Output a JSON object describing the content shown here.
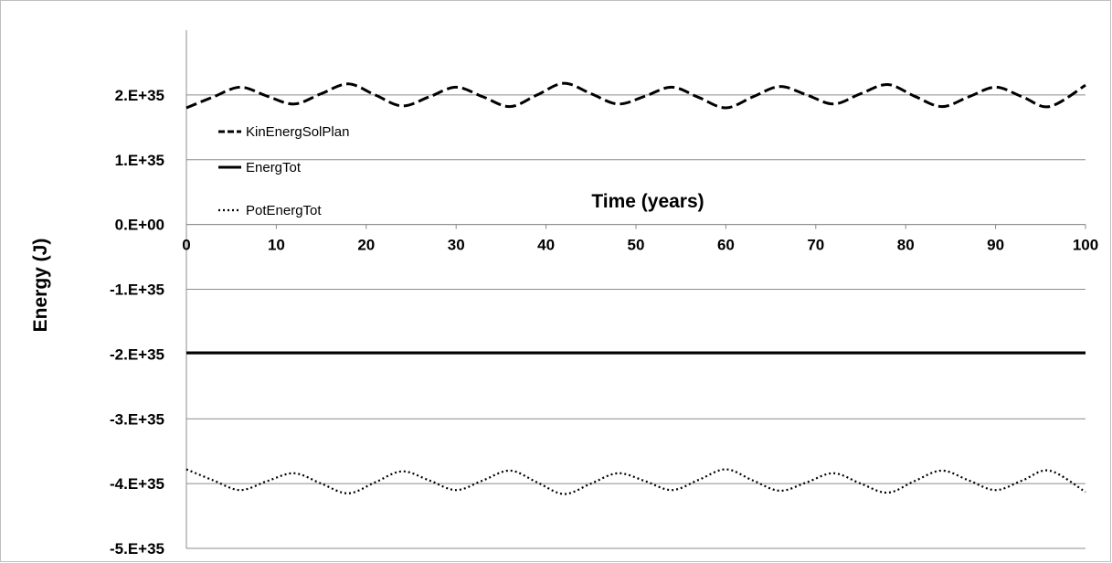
{
  "chart_data": {
    "type": "line",
    "xlabel": "Time (years)",
    "ylabel": "Energy (J)",
    "xlim": [
      0,
      100
    ],
    "ylim": [
      -5e+35,
      3e+35
    ],
    "x_ticks": [
      0,
      10,
      20,
      30,
      40,
      50,
      60,
      70,
      80,
      90,
      100
    ],
    "x_tick_labels": [
      "0",
      "10",
      "20",
      "30",
      "40",
      "50",
      "60",
      "70",
      "80",
      "90",
      "100"
    ],
    "y_ticks": [
      2e+35,
      1e+35,
      0,
      -1e+35,
      -2e+35,
      -3e+35,
      -4e+35,
      -5e+35
    ],
    "y_tick_labels": [
      "2.E+35",
      "1.E+35",
      "0.E+00",
      "-1.E+35",
      "-2.E+35",
      "-3.E+35",
      "-4.E+35",
      "-5.E+35"
    ],
    "grid": "horizontal",
    "legend_position": "top-left",
    "x": [
      0,
      3,
      6,
      9,
      12,
      15,
      18,
      21,
      24,
      27,
      30,
      33,
      36,
      39,
      42,
      45,
      48,
      51,
      54,
      57,
      60,
      63,
      66,
      69,
      72,
      75,
      78,
      81,
      84,
      87,
      90,
      93,
      96,
      100
    ],
    "series": [
      {
        "name": "KinEnergSolPlan",
        "style": "dashed",
        "color": "#000000",
        "values": [
          1.8e+35,
          1.97e+35,
          2.12e+35,
          1.98e+35,
          1.86e+35,
          2.02e+35,
          2.17e+35,
          2e+35,
          1.83e+35,
          1.97e+35,
          2.12e+35,
          1.97e+35,
          1.82e+35,
          2e+35,
          2.18e+35,
          2.02e+35,
          1.86e+35,
          1.98e+35,
          2.12e+35,
          1.96e+35,
          1.8e+35,
          1.97e+35,
          2.13e+35,
          2e+35,
          1.86e+35,
          2.02e+35,
          2.16e+35,
          1.98e+35,
          1.82e+35,
          1.97e+35,
          2.12e+35,
          1.97e+35,
          1.82e+35,
          2.15e+35
        ]
      },
      {
        "name": "EnergTot",
        "style": "solid",
        "color": "#000000",
        "values": [
          -1.98e+35,
          -1.98e+35,
          -1.98e+35,
          -1.98e+35,
          -1.98e+35,
          -1.98e+35,
          -1.98e+35,
          -1.98e+35,
          -1.98e+35,
          -1.98e+35,
          -1.98e+35,
          -1.98e+35,
          -1.98e+35,
          -1.98e+35,
          -1.98e+35,
          -1.98e+35,
          -1.98e+35,
          -1.98e+35,
          -1.98e+35,
          -1.98e+35,
          -1.98e+35,
          -1.98e+35,
          -1.98e+35,
          -1.98e+35,
          -1.98e+35,
          -1.98e+35,
          -1.98e+35,
          -1.98e+35,
          -1.98e+35,
          -1.98e+35,
          -1.98e+35,
          -1.98e+35,
          -1.98e+35,
          -1.98e+35
        ]
      },
      {
        "name": "PotEnergTot",
        "style": "dotted",
        "color": "#000000",
        "values": [
          -3.78e+35,
          -3.95e+35,
          -4.1e+35,
          -3.96e+35,
          -3.84e+35,
          -4e+35,
          -4.15e+35,
          -3.98e+35,
          -3.81e+35,
          -3.95e+35,
          -4.1e+35,
          -3.95e+35,
          -3.8e+35,
          -3.98e+35,
          -4.16e+35,
          -4e+35,
          -3.84e+35,
          -3.96e+35,
          -4.1e+35,
          -3.94e+35,
          -3.78e+35,
          -3.95e+35,
          -4.11e+35,
          -3.98e+35,
          -3.84e+35,
          -4e+35,
          -4.14e+35,
          -3.96e+35,
          -3.8e+35,
          -3.95e+35,
          -4.1e+35,
          -3.95e+35,
          -3.8e+35,
          -4.13e+35
        ]
      }
    ]
  }
}
